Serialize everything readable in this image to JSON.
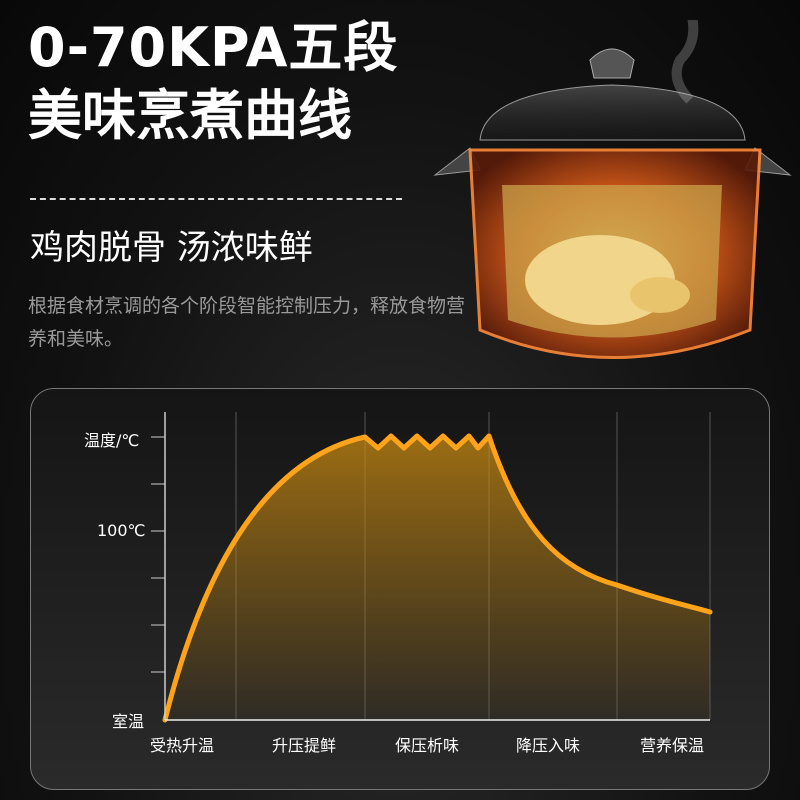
{
  "headline": {
    "highlight": "0-70KPA",
    "rest": "五段",
    "line2": "美味烹煮曲线"
  },
  "subtitle": "鸡肉脱骨 汤浓味鲜",
  "description": "根据食材烹调的各个阶段智能控制压力，释放食物营养和美味。",
  "accent_color": "#e38d2b",
  "curve_color": "#ffa31a",
  "diagram": {
    "y_labels": {
      "top": "温度/℃",
      "mid": "100℃",
      "bottom": "室温"
    },
    "stages": [
      "受热升温",
      "升压提鲜",
      "保压析味",
      "降压入味",
      "营养保温"
    ]
  }
}
